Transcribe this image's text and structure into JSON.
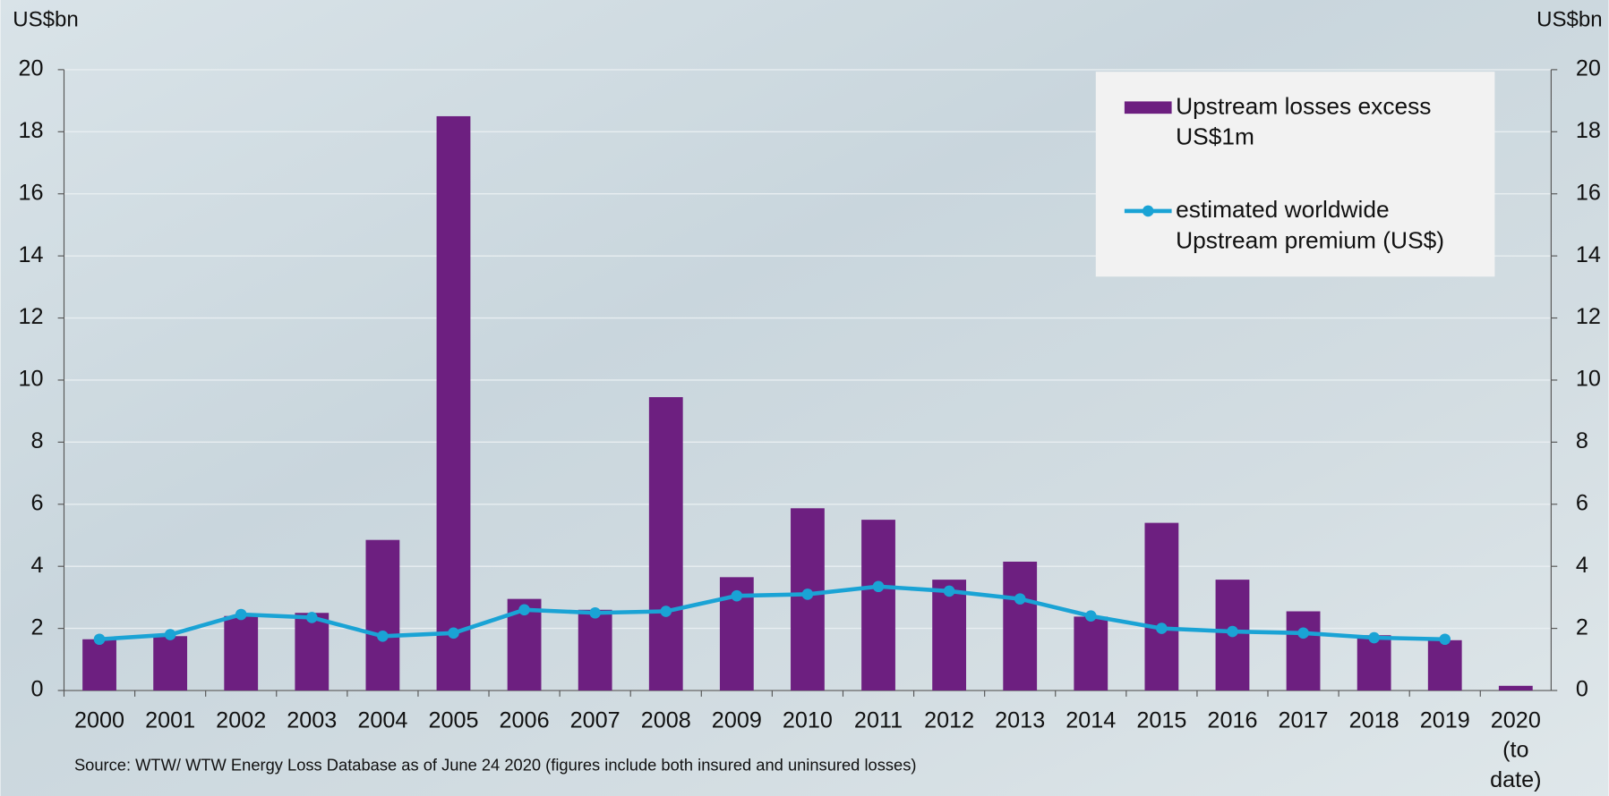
{
  "chart_data": {
    "type": "bar-line",
    "y_label": "US$bn",
    "y2_label": "US$bn",
    "source": "Source:  WTW/ WTW Energy Loss Database as of June 24 2020 (figures include both insured and uninsured losses)",
    "categories": [
      "2000",
      "2001",
      "2002",
      "2003",
      "2004",
      "2005",
      "2006",
      "2007",
      "2008",
      "2009",
      "2010",
      "2011",
      "2012",
      "2013",
      "2014",
      "2015",
      "2016",
      "2017",
      "2018",
      "2019",
      "2020 (to date)"
    ],
    "series": [
      {
        "name": "Upstream losses excess US$1m",
        "type": "bar",
        "color": "#6d1f80",
        "values": [
          1.65,
          1.75,
          2.4,
          2.5,
          4.85,
          18.5,
          2.95,
          2.6,
          9.45,
          3.65,
          5.87,
          5.5,
          3.57,
          4.15,
          2.38,
          5.4,
          3.57,
          2.55,
          1.78,
          1.62,
          0.15
        ]
      },
      {
        "name": "estimated worldwide Upstream premium (US$)",
        "type": "line",
        "axis": "y2",
        "color": "#1aa3d5",
        "values": [
          1.65,
          1.8,
          2.45,
          2.35,
          1.75,
          1.85,
          2.6,
          2.5,
          2.55,
          3.05,
          3.1,
          3.35,
          3.2,
          2.95,
          2.4,
          2.0,
          1.9,
          1.85,
          1.7,
          1.65,
          null
        ]
      }
    ],
    "ylim": [
      0,
      20
    ],
    "yticks": [
      0,
      2,
      4,
      6,
      8,
      10,
      12,
      14,
      16,
      18,
      20
    ],
    "y2lim": [
      0,
      20
    ],
    "y2ticks": [
      0,
      2,
      4,
      6,
      8,
      10,
      12,
      14,
      16,
      18,
      20
    ],
    "grid": true,
    "legend": "upper right"
  }
}
